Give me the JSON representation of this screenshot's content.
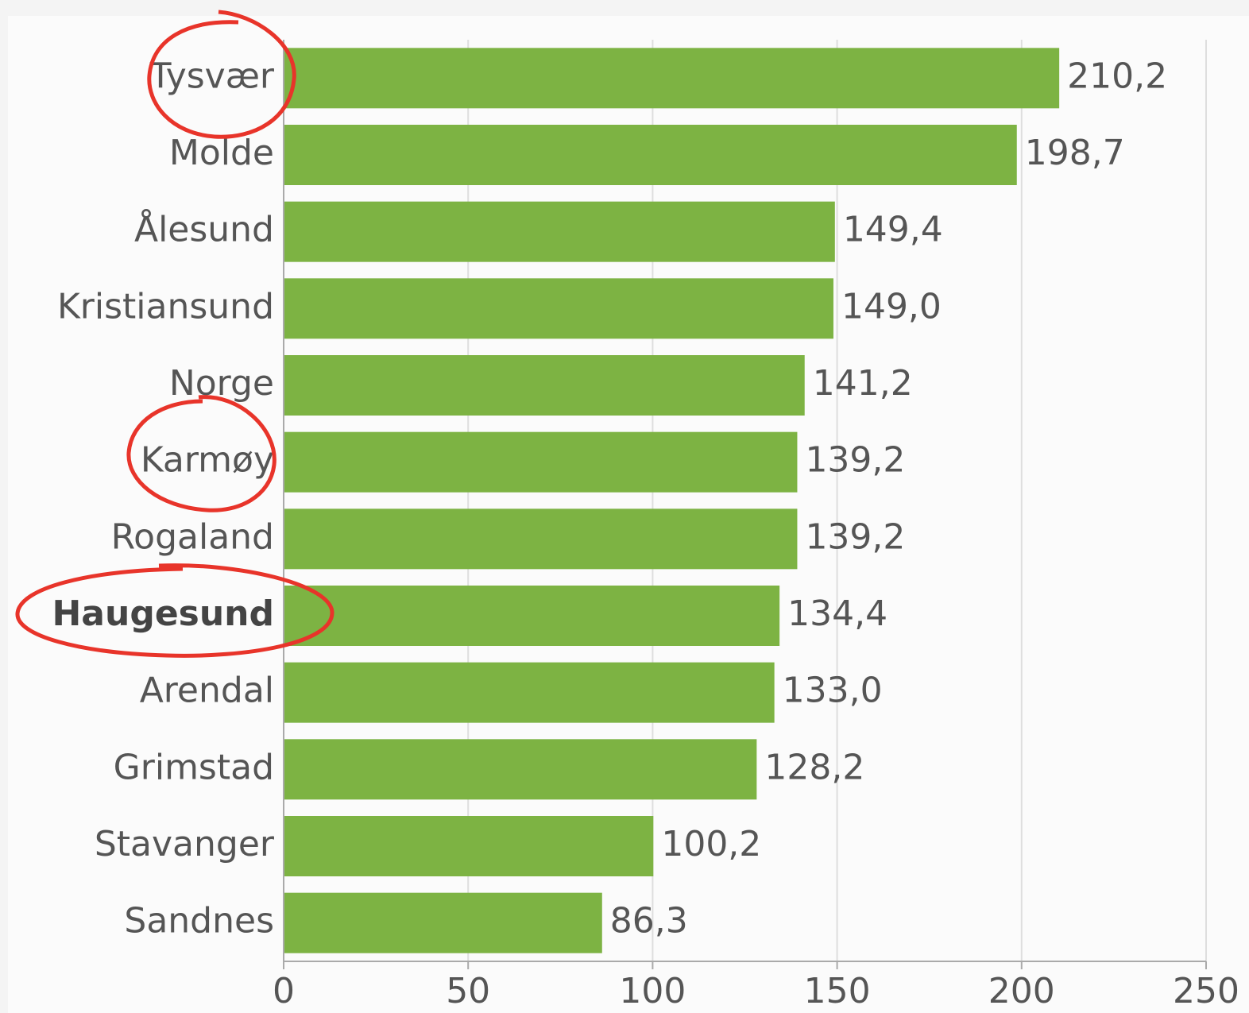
{
  "chart_data": {
    "type": "bar",
    "orientation": "horizontal",
    "categories": [
      "Tysvær",
      "Molde",
      "Ålesund",
      "Kristiansund",
      "Norge",
      "Karmøy",
      "Rogaland",
      "Haugesund",
      "Arendal",
      "Grimstad",
      "Stavanger",
      "Sandnes"
    ],
    "values": [
      210.2,
      198.7,
      149.4,
      149.0,
      141.2,
      139.2,
      139.2,
      134.4,
      133.0,
      128.2,
      100.2,
      86.3
    ],
    "value_labels": [
      "210,2",
      "198,7",
      "149,4",
      "149,0",
      "141,2",
      "139,2",
      "139,2",
      "134,4",
      "133,0",
      "128,2",
      "100,2",
      "86,3"
    ],
    "color": "#7db343",
    "xlim": [
      0,
      250
    ],
    "xticks": [
      0,
      50,
      100,
      150,
      200,
      250
    ],
    "grid": true
  }
}
